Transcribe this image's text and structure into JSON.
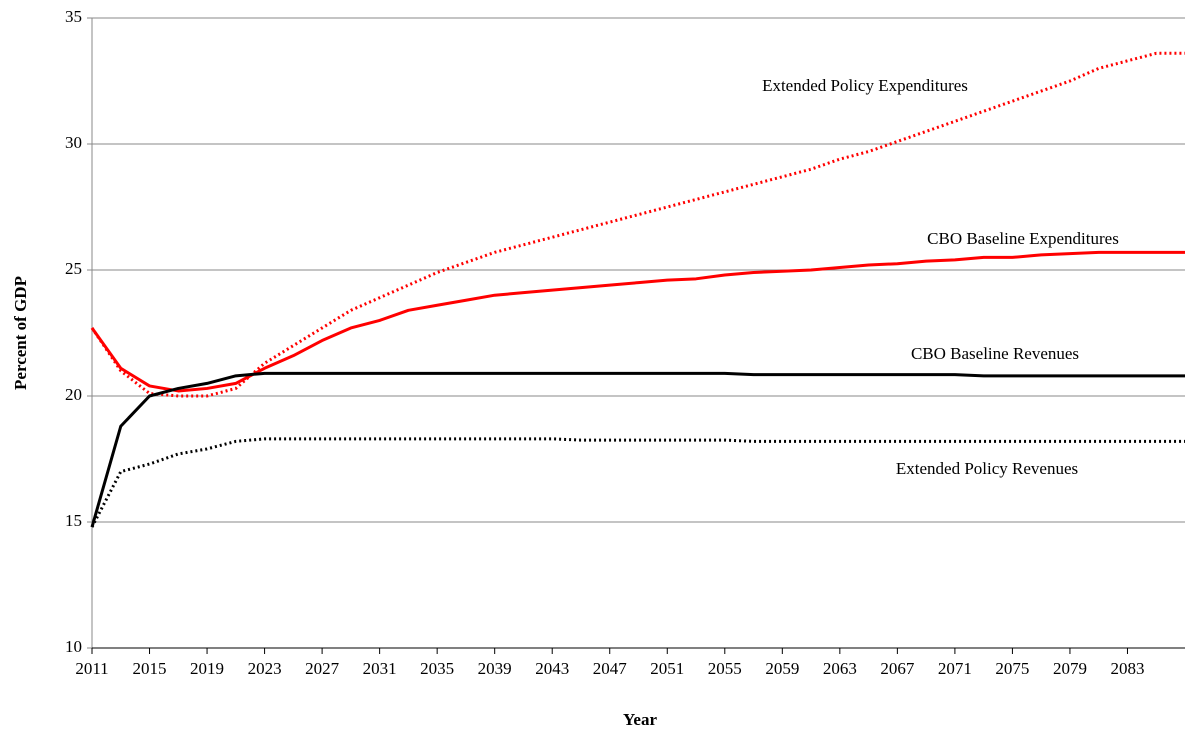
{
  "chart_data": {
    "type": "line",
    "y_label": "Percent of GDP",
    "x_label": "Year",
    "x": [
      2011,
      2013,
      2015,
      2017,
      2019,
      2021,
      2023,
      2025,
      2027,
      2029,
      2031,
      2033,
      2035,
      2037,
      2039,
      2041,
      2043,
      2045,
      2047,
      2049,
      2051,
      2053,
      2055,
      2057,
      2059,
      2061,
      2063,
      2065,
      2067,
      2069,
      2071,
      2073,
      2075,
      2077,
      2079,
      2081,
      2083,
      2085,
      2087
    ],
    "series": [
      {
        "name": "CBO Baseline Expenditures",
        "color": "#ff0000",
        "style": "solid",
        "values": [
          22.7,
          21.1,
          20.4,
          20.2,
          20.3,
          20.5,
          21.1,
          21.6,
          22.2,
          22.7,
          23.0,
          23.4,
          23.6,
          23.8,
          24.0,
          24.1,
          24.2,
          24.3,
          24.4,
          24.5,
          24.6,
          24.65,
          24.8,
          24.9,
          24.95,
          25.0,
          25.1,
          25.2,
          25.25,
          25.35,
          25.4,
          25.5,
          25.5,
          25.6,
          25.65,
          25.7,
          25.7,
          25.7,
          25.7
        ]
      },
      {
        "name": "Extended Policy Expenditures",
        "color": "#ff0000",
        "style": "dotted",
        "values": [
          22.7,
          21.0,
          20.1,
          20.0,
          20.0,
          20.3,
          21.3,
          22.0,
          22.7,
          23.4,
          23.9,
          24.4,
          24.9,
          25.3,
          25.7,
          26.0,
          26.3,
          26.6,
          26.9,
          27.2,
          27.5,
          27.8,
          28.1,
          28.4,
          28.7,
          29.0,
          29.4,
          29.7,
          30.1,
          30.5,
          30.9,
          31.3,
          31.7,
          32.1,
          32.5,
          33.0,
          33.3,
          33.6,
          33.6
        ]
      },
      {
        "name": "CBO Baseline Revenues",
        "color": "#000000",
        "style": "solid",
        "values": [
          14.8,
          18.8,
          20.0,
          20.3,
          20.5,
          20.8,
          20.9,
          20.9,
          20.9,
          20.9,
          20.9,
          20.9,
          20.9,
          20.9,
          20.9,
          20.9,
          20.9,
          20.9,
          20.9,
          20.9,
          20.9,
          20.9,
          20.9,
          20.85,
          20.85,
          20.85,
          20.85,
          20.85,
          20.85,
          20.85,
          20.85,
          20.8,
          20.8,
          20.8,
          20.8,
          20.8,
          20.8,
          20.8,
          20.8
        ]
      },
      {
        "name": "Extended Policy Revenues",
        "color": "#000000",
        "style": "dotted",
        "values": [
          14.8,
          17.0,
          17.3,
          17.7,
          17.9,
          18.2,
          18.3,
          18.3,
          18.3,
          18.3,
          18.3,
          18.3,
          18.3,
          18.3,
          18.3,
          18.3,
          18.3,
          18.25,
          18.25,
          18.25,
          18.25,
          18.25,
          18.25,
          18.2,
          18.2,
          18.2,
          18.2,
          18.2,
          18.2,
          18.2,
          18.2,
          18.2,
          18.2,
          18.2,
          18.2,
          18.2,
          18.2,
          18.2,
          18.2
        ]
      }
    ],
    "xlim": [
      2011,
      2087
    ],
    "xticks": [
      2011,
      2015,
      2019,
      2023,
      2027,
      2031,
      2035,
      2039,
      2043,
      2047,
      2051,
      2055,
      2059,
      2063,
      2067,
      2071,
      2075,
      2079,
      2083
    ],
    "ylim": [
      10,
      35
    ],
    "yticks": [
      10,
      15,
      20,
      25,
      30,
      35
    ],
    "grid": true
  }
}
